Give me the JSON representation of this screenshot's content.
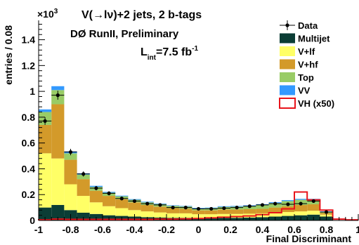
{
  "chart_data": {
    "type": "histogram",
    "title": "V(→lν)+2 jets, 2 b-tags",
    "xlabel": "Final Discriminant",
    "ylabel": "entries / 0.08",
    "y_multiplier": "×10",
    "y_multiplier_exp": "3",
    "annotation": "DØ RunII, Preliminary",
    "lumi_L": "L",
    "lumi_sub": "int",
    "lumi_value": "=7.5 fb",
    "lumi_exp": "-1",
    "xlim": [
      -1,
      1
    ],
    "ylim": [
      0,
      1.55
    ],
    "x_ticks": [
      "-1",
      "-0.8",
      "-0.6",
      "-0.4",
      "-0.2",
      "0",
      "0.2",
      "0.4",
      "0.6",
      "0.8",
      "1"
    ],
    "y_ticks": [
      "0",
      "0.2",
      "0.4",
      "0.6",
      "0.8",
      "1",
      "1.2",
      "1.4"
    ],
    "bin_edges": [
      -1,
      -0.92,
      -0.84,
      -0.76,
      -0.68,
      -0.6,
      -0.52,
      -0.44,
      -0.36,
      -0.28,
      -0.2,
      -0.12,
      -0.04,
      0.04,
      0.12,
      0.2,
      0.28,
      0.36,
      0.44,
      0.52,
      0.6,
      0.68,
      0.76,
      0.84,
      0.92,
      1.0
    ],
    "stack": [
      {
        "name": "Multijet",
        "color": "#0b3d35",
        "values": [
          0.1,
          0.12,
          0.08,
          0.06,
          0.05,
          0.04,
          0.035,
          0.03,
          0.025,
          0.022,
          0.02,
          0.02,
          0.018,
          0.018,
          0.02,
          0.02,
          0.022,
          0.025,
          0.03,
          0.035,
          0.04,
          0.045,
          0.03,
          0.0,
          0.0
        ]
      },
      {
        "name": "V+lf",
        "color": "#ffff66",
        "values": [
          0.42,
          0.36,
          0.2,
          0.13,
          0.09,
          0.07,
          0.06,
          0.05,
          0.045,
          0.04,
          0.035,
          0.035,
          0.03,
          0.03,
          0.03,
          0.03,
          0.03,
          0.03,
          0.03,
          0.03,
          0.03,
          0.03,
          0.015,
          0.0,
          0.0
        ]
      },
      {
        "name": "V+hf",
        "color": "#d39a2a",
        "values": [
          0.22,
          0.42,
          0.19,
          0.13,
          0.09,
          0.08,
          0.07,
          0.06,
          0.05,
          0.045,
          0.04,
          0.035,
          0.03,
          0.03,
          0.035,
          0.035,
          0.035,
          0.035,
          0.04,
          0.045,
          0.05,
          0.05,
          0.012,
          0.0,
          0.0
        ]
      },
      {
        "name": "Top",
        "color": "#99cc66",
        "values": [
          0.1,
          0.11,
          0.05,
          0.035,
          0.03,
          0.025,
          0.022,
          0.02,
          0.02,
          0.02,
          0.018,
          0.018,
          0.015,
          0.018,
          0.02,
          0.022,
          0.025,
          0.03,
          0.035,
          0.04,
          0.04,
          0.035,
          0.01,
          0.0,
          0.0
        ]
      },
      {
        "name": "VV",
        "color": "#3399ff",
        "values": [
          0.02,
          0.03,
          0.015,
          0.01,
          0.008,
          0.006,
          0.005,
          0.005,
          0.005,
          0.004,
          0.004,
          0.004,
          0.004,
          0.004,
          0.005,
          0.005,
          0.005,
          0.006,
          0.006,
          0.007,
          0.007,
          0.007,
          0.003,
          0.0,
          0.0
        ]
      }
    ],
    "signal": {
      "name": "VH (x50)",
      "color": "#e8141b",
      "values": [
        0.005,
        0.01,
        0.008,
        0.008,
        0.008,
        0.008,
        0.008,
        0.008,
        0.008,
        0.01,
        0.01,
        0.012,
        0.015,
        0.02,
        0.025,
        0.03,
        0.035,
        0.045,
        0.06,
        0.09,
        0.22,
        0.16,
        0.08,
        0.01,
        0.005
      ]
    },
    "data": {
      "name": "Data",
      "color": "#000000",
      "values": [
        0.77,
        0.97,
        0.53,
        0.36,
        0.25,
        0.21,
        0.17,
        0.15,
        0.13,
        0.12,
        0.1,
        0.1,
        0.09,
        0.09,
        0.095,
        0.1,
        0.11,
        0.12,
        0.13,
        0.125,
        0.13,
        0.15,
        0.065,
        0.0,
        0.0
      ],
      "errors": [
        0.03,
        0.035,
        0.025,
        0.02,
        0.017,
        0.016,
        0.014,
        0.013,
        0.012,
        0.012,
        0.011,
        0.011,
        0.01,
        0.01,
        0.01,
        0.011,
        0.011,
        0.012,
        0.012,
        0.012,
        0.012,
        0.013,
        0.009,
        0.0,
        0.0
      ]
    },
    "legend_position": "top-right",
    "legend": [
      "Data",
      "Multijet",
      "V+lf",
      "V+hf",
      "Top",
      "VV",
      "VH (x50)"
    ]
  }
}
